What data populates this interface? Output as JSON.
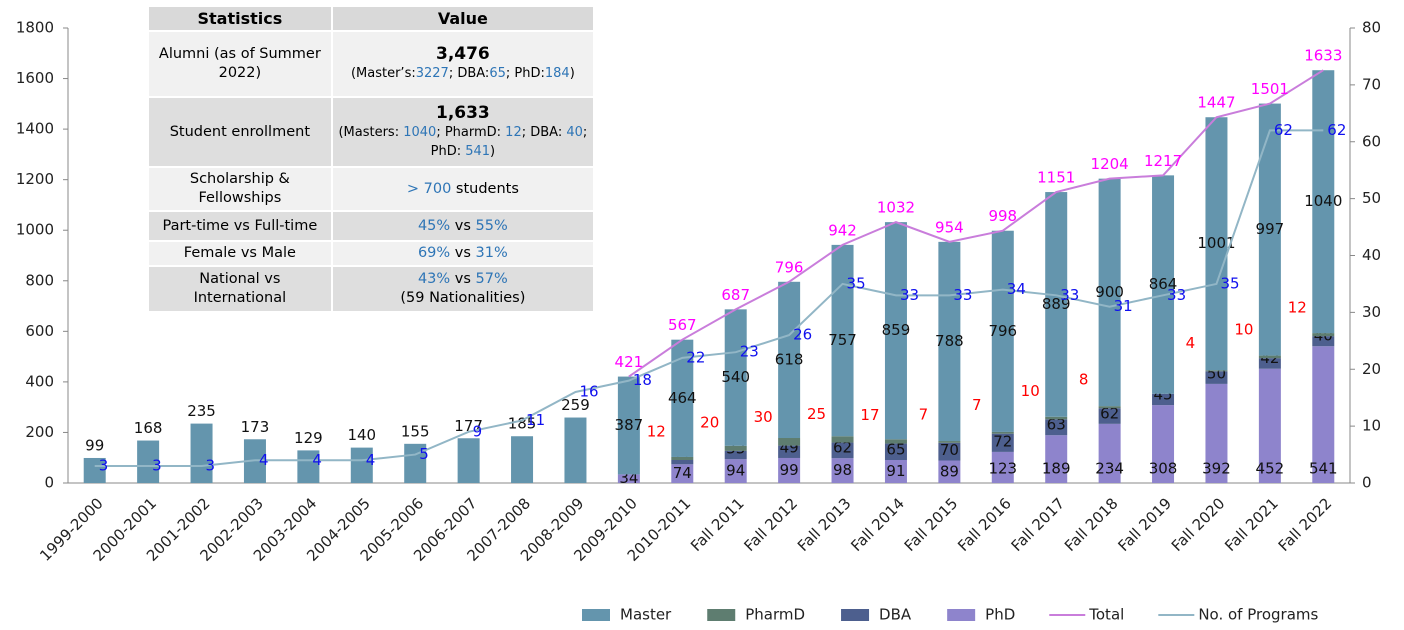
{
  "chart_data": {
    "type": "bar",
    "categories": [
      "1999-2000",
      "2000-2001",
      "2001-2002",
      "2002-2003",
      "2003-2004",
      "2004-2005",
      "2005-2006",
      "2006-2007",
      "2007-2008",
      "2008-2009",
      "2009-2010",
      "2010-2011",
      "Fall 2011",
      "Fall 2012",
      "Fall 2013",
      "Fall 2014",
      "Fall 2015",
      "Fall 2016",
      "Fall 2017",
      "Fall 2018",
      "Fall 2019",
      "Fall 2020",
      "Fall 2021",
      "Fall 2022"
    ],
    "series": [
      {
        "name": "Master",
        "color": "#6495ad",
        "label_color": "#111111",
        "values": [
          99,
          168,
          235,
          173,
          129,
          140,
          155,
          177,
          185,
          259,
          387,
          464,
          540,
          618,
          757,
          859,
          788,
          796,
          889,
          900,
          864,
          1001,
          997,
          1040
        ]
      },
      {
        "name": "PharmD",
        "color": "#5e7d70",
        "label_color": "#ff0000",
        "values": [
          null,
          null,
          null,
          null,
          null,
          null,
          null,
          null,
          null,
          null,
          null,
          12,
          20,
          30,
          25,
          17,
          7,
          7,
          10,
          8,
          null,
          4,
          10,
          12
        ]
      },
      {
        "name": "DBA",
        "color": "#4d5f8e",
        "label_color": "#111111",
        "values": [
          null,
          null,
          null,
          null,
          null,
          null,
          null,
          null,
          null,
          null,
          null,
          17,
          33,
          49,
          62,
          65,
          70,
          72,
          63,
          62,
          45,
          50,
          42,
          40
        ]
      },
      {
        "name": "PhD",
        "color": "#8e84cc",
        "label_color": "#111111",
        "values": [
          null,
          null,
          null,
          null,
          null,
          null,
          null,
          null,
          null,
          null,
          34,
          74,
          94,
          99,
          98,
          91,
          89,
          123,
          189,
          234,
          308,
          392,
          452,
          541
        ]
      },
      {
        "name": "Total",
        "type": "line",
        "color": "#c97ddb",
        "label_color": "#ff00ff",
        "values": [
          null,
          null,
          null,
          null,
          null,
          null,
          null,
          null,
          null,
          null,
          421,
          567,
          687,
          796,
          942,
          1032,
          954,
          998,
          1151,
          1204,
          1217,
          1447,
          1501,
          1633
        ]
      },
      {
        "name": "No. of Programs",
        "type": "line",
        "axis": "y2",
        "color": "#92b6c6",
        "label_color": "#1010ee",
        "values": [
          3,
          3,
          3,
          4,
          4,
          4,
          5,
          9,
          11,
          16,
          18,
          22,
          23,
          26,
          35,
          33,
          33,
          34,
          33,
          31,
          33,
          35,
          62,
          62
        ]
      }
    ],
    "ylim": [
      0,
      1800
    ],
    "yticks": [
      0,
      200,
      400,
      600,
      800,
      1000,
      1200,
      1400,
      1600,
      1800
    ],
    "y2lim": [
      0,
      80
    ],
    "y2ticks": [
      0,
      10,
      20,
      30,
      40,
      50,
      60,
      70,
      80
    ],
    "legend": "bottom"
  },
  "table": {
    "header": [
      "Statistics",
      "Value"
    ],
    "rows": [
      {
        "label": "Alumni (as of Summer 2022)",
        "headline": "3,476",
        "parts": [
          "(Master’s:",
          {
            "text": "3227",
            "color": "#2e75b6"
          },
          "; DBA:",
          {
            "text": "65",
            "color": "#2e75b6"
          },
          "; PhD:",
          {
            "text": "184",
            "color": "#2e75b6"
          },
          ")"
        ]
      },
      {
        "label": "Student enrollment",
        "headline": "1,633",
        "parts": [
          "(Masters: ",
          {
            "text": "1040",
            "color": "#2e75b6"
          },
          "; PharmD: ",
          {
            "text": "12",
            "color": "#2e75b6"
          },
          "; DBA: ",
          {
            "text": "40",
            "color": "#2e75b6"
          },
          "; PhD: ",
          {
            "text": "541",
            "color": "#2e75b6"
          },
          ")"
        ]
      },
      {
        "label": "Scholarship & Fellowships",
        "parts": [
          {
            "text": "> 700",
            "color": "#2e75b6"
          },
          " students"
        ]
      },
      {
        "label": "Part-time vs Full-time",
        "parts": [
          {
            "text": "45%",
            "color": "#2e75b6"
          },
          " vs ",
          {
            "text": "55%",
            "color": "#2e75b6"
          }
        ]
      },
      {
        "label": "Female vs Male",
        "parts": [
          {
            "text": "69%",
            "color": "#2e75b6"
          },
          " vs ",
          {
            "text": "31%",
            "color": "#2e75b6"
          }
        ]
      },
      {
        "label": "National vs International",
        "parts": [
          {
            "text": "43%",
            "color": "#2e75b6"
          },
          " vs ",
          {
            "text": "57%",
            "color": "#2e75b6"
          }
        ],
        "note": "(59 Nationalities)"
      }
    ]
  }
}
